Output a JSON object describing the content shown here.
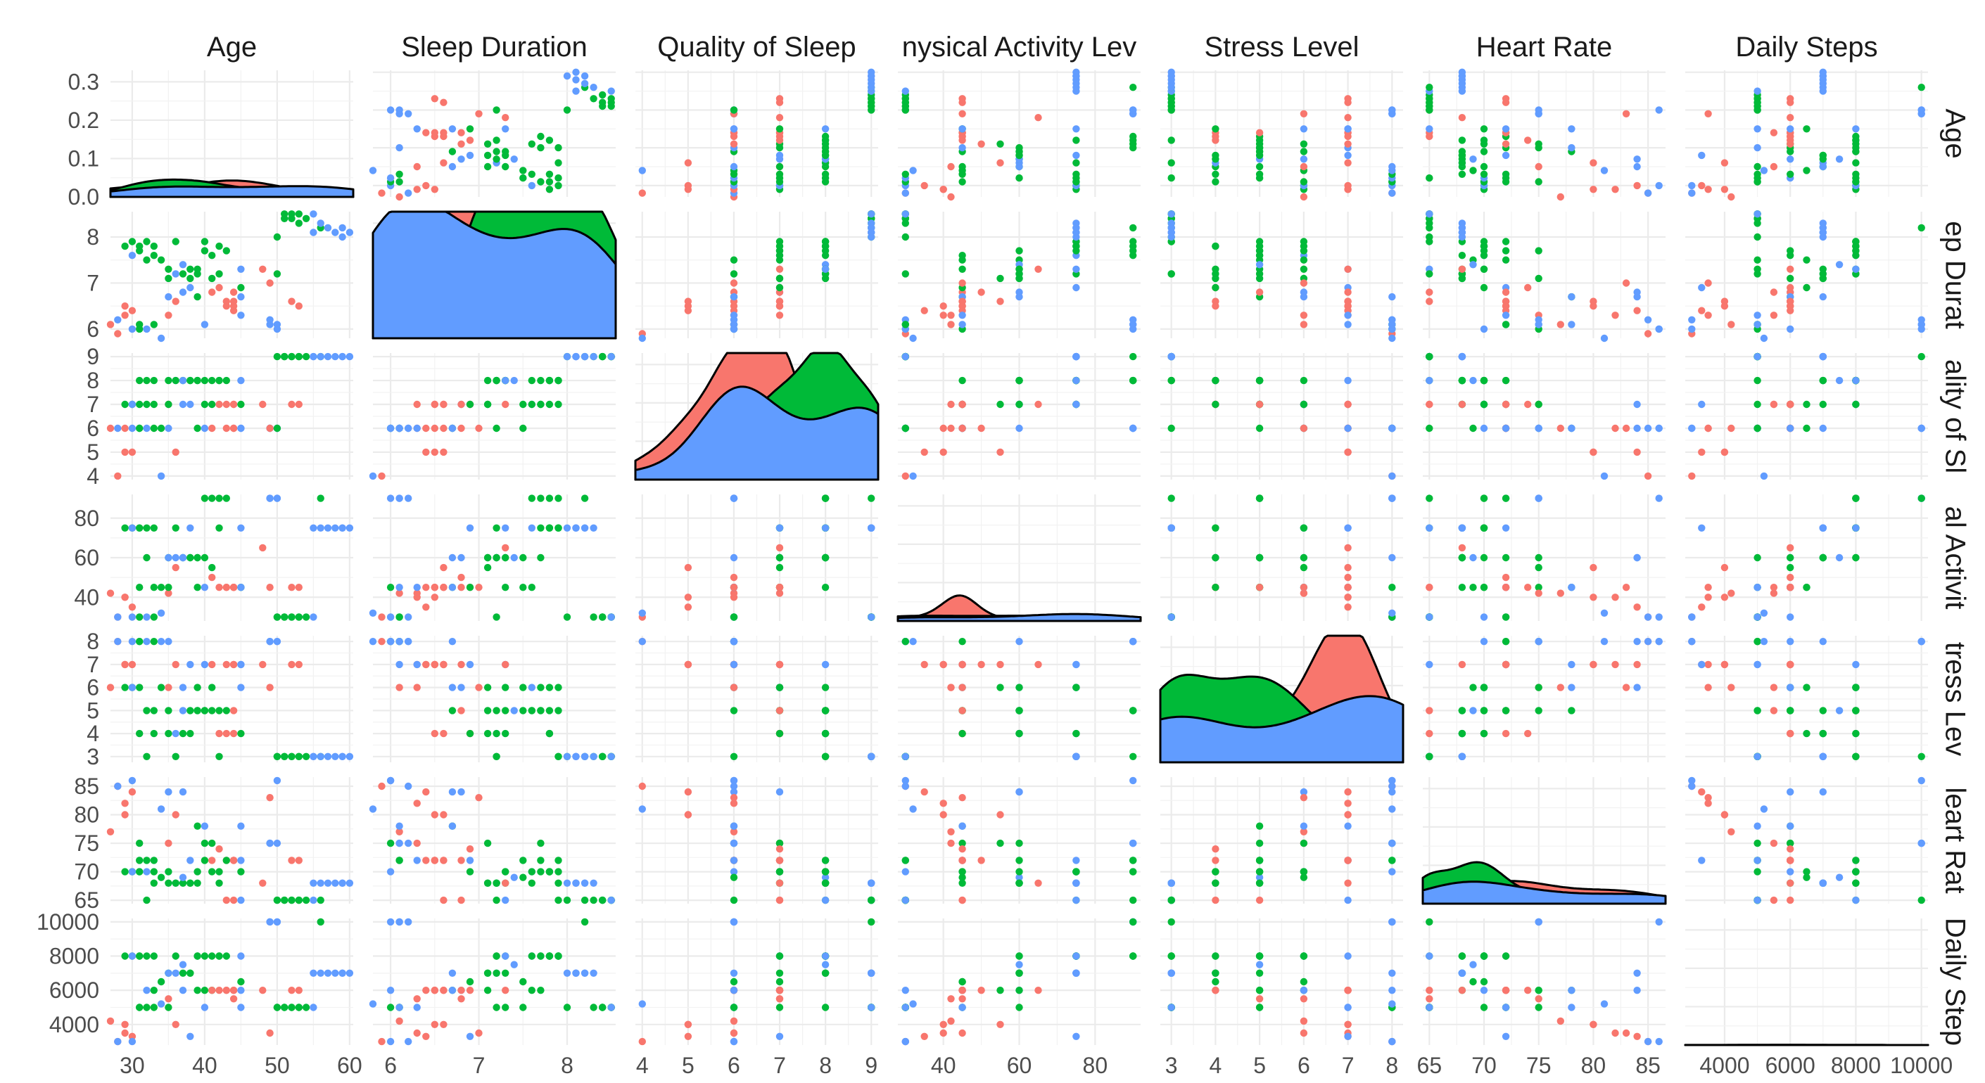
{
  "chart_data": {
    "type": "scatter",
    "variables": [
      "Age",
      "Sleep Duration",
      "Quality of Sleep",
      "Physical Activity Level",
      "Stress Level",
      "Heart Rate",
      "Daily Steps"
    ],
    "column_strips": [
      "Age",
      "Sleep Duration",
      "Quality of Sleep",
      "nysical Activity Lev",
      "Stress Level",
      "Heart Rate",
      "Daily Steps"
    ],
    "row_strips": [
      "Age",
      "ep Durat",
      "ality of Sl",
      "al Activit",
      "tress Lev",
      "leart Rat",
      "Daily Step"
    ],
    "colors": [
      "#F8766D",
      "#00BA38",
      "#619CFF"
    ],
    "axes": [
      {
        "range": [
          27,
          60.5
        ],
        "ticks": [
          30,
          40,
          50,
          60
        ]
      },
      {
        "range": [
          5.8,
          8.55
        ],
        "ticks": [
          6,
          7,
          8
        ]
      },
      {
        "range": [
          3.85,
          9.15
        ],
        "ticks": [
          4,
          5,
          6,
          7,
          8,
          9
        ]
      },
      {
        "range": [
          28,
          92
        ],
        "ticks": [
          40,
          60,
          80
        ]
      },
      {
        "range": [
          2.75,
          8.25
        ],
        "ticks": [
          3,
          4,
          5,
          6,
          7,
          8
        ]
      },
      {
        "range": [
          64.4,
          86.6
        ],
        "ticks": [
          65,
          70,
          75,
          80,
          85
        ]
      },
      {
        "range": [
          2800,
          10200
        ],
        "ticks": [
          4000,
          6000,
          8000,
          10000
        ]
      }
    ],
    "density_ymax": 0.33,
    "density_ticks": [
      0.0,
      0.1,
      0.2,
      0.3
    ],
    "density_tick_labels": [
      "0.0",
      "0.1",
      "0.2",
      "0.3"
    ],
    "points": [
      [
        27,
        6.1,
        6,
        42,
        6,
        77,
        4200,
        0
      ],
      [
        28,
        5.9,
        4,
        30,
        8,
        85,
        3000,
        0
      ],
      [
        28,
        6.2,
        6,
        30,
        8,
        85,
        3000,
        2
      ],
      [
        29,
        6.3,
        6,
        40,
        7,
        82,
        3500,
        0
      ],
      [
        29,
        6.5,
        5,
        40,
        7,
        80,
        4000,
        0
      ],
      [
        29,
        7.8,
        7,
        75,
        6,
        70,
        8000,
        1
      ],
      [
        30,
        7.9,
        7,
        75,
        6,
        70,
        8000,
        1
      ],
      [
        30,
        6.4,
        5,
        35,
        7,
        84,
        3300,
        0
      ],
      [
        30,
        6.0,
        6,
        30,
        8,
        86,
        3000,
        2
      ],
      [
        30,
        7.6,
        7,
        75,
        6,
        70,
        8000,
        2
      ],
      [
        31,
        7.7,
        7,
        75,
        6,
        70,
        8000,
        1
      ],
      [
        31,
        6.1,
        6,
        30,
        8,
        72,
        5000,
        1
      ],
      [
        31,
        7.8,
        8,
        75,
        4,
        70,
        8000,
        1
      ],
      [
        31,
        6.0,
        6,
        45,
        8,
        75,
        5000,
        1
      ],
      [
        32,
        7.5,
        7,
        60,
        5,
        72,
        5000,
        1
      ],
      [
        32,
        7.9,
        8,
        75,
        3,
        65,
        8000,
        1
      ],
      [
        32,
        6.0,
        6,
        30,
        8,
        70,
        6000,
        2
      ],
      [
        33,
        7.6,
        7,
        45,
        5,
        68,
        6000,
        1
      ],
      [
        33,
        6.1,
        6,
        30,
        8,
        72,
        5000,
        1
      ],
      [
        33,
        7.8,
        8,
        75,
        4,
        70,
        8000,
        1
      ],
      [
        34,
        5.8,
        4,
        32,
        8,
        81,
        5200,
        2
      ],
      [
        34,
        7.5,
        6,
        45,
        6,
        69,
        6500,
        1
      ],
      [
        35,
        6.3,
        7,
        42,
        6,
        75,
        5500,
        0
      ],
      [
        35,
        7.3,
        8,
        45,
        5,
        70,
        5000,
        1
      ],
      [
        35,
        7.1,
        7,
        60,
        4,
        68,
        7000,
        1
      ],
      [
        35,
        6.7,
        6,
        60,
        8,
        84,
        7000,
        2
      ],
      [
        36,
        7.2,
        8,
        60,
        4,
        68,
        7000,
        2
      ],
      [
        36,
        7.9,
        8,
        75,
        3,
        68,
        8000,
        1
      ],
      [
        36,
        6.6,
        5,
        55,
        7,
        80,
        4000,
        0
      ],
      [
        37,
        7.2,
        8,
        60,
        4,
        68,
        7000,
        1
      ],
      [
        37,
        7.4,
        8,
        60,
        5,
        69,
        7500,
        2
      ],
      [
        37,
        6.8,
        7,
        60,
        6,
        84,
        6000,
        2
      ],
      [
        38,
        7.1,
        8,
        60,
        5,
        68,
        7000,
        1
      ],
      [
        38,
        7.3,
        8,
        60,
        4,
        68,
        7000,
        1
      ],
      [
        38,
        6.9,
        7,
        75,
        7,
        72,
        3300,
        2
      ],
      [
        39,
        7.2,
        8,
        60,
        5,
        68,
        8000,
        1
      ],
      [
        39,
        7.3,
        8,
        60,
        6,
        70,
        8000,
        1
      ],
      [
        39,
        6.7,
        6,
        45,
        5,
        78,
        6000,
        1
      ],
      [
        40,
        7.9,
        8,
        90,
        5,
        72,
        8000,
        1
      ],
      [
        40,
        7.7,
        7,
        60,
        5,
        75,
        6000,
        1
      ],
      [
        40,
        6.1,
        6,
        45,
        7,
        78,
        5000,
        2
      ],
      [
        41,
        7.6,
        8,
        90,
        5,
        70,
        8000,
        1
      ],
      [
        41,
        7.1,
        7,
        55,
        6,
        75,
        6000,
        1
      ],
      [
        41,
        6.8,
        6,
        50,
        7,
        72,
        6000,
        0
      ],
      [
        42,
        7.8,
        8,
        90,
        5,
        70,
        8000,
        1
      ],
      [
        42,
        6.9,
        7,
        45,
        4,
        74,
        6000,
        0
      ],
      [
        42,
        7.2,
        8,
        75,
        3,
        68,
        8000,
        1
      ],
      [
        43,
        6.5,
        6,
        45,
        7,
        72,
        6000,
        0
      ],
      [
        43,
        6.6,
        7,
        45,
        4,
        65,
        6000,
        0
      ],
      [
        43,
        7.7,
        8,
        90,
        5,
        72,
        8000,
        1
      ],
      [
        44,
        6.6,
        6,
        45,
        7,
        72,
        6000,
        0
      ],
      [
        44,
        6.4,
        6,
        45,
        7,
        72,
        6000,
        0
      ],
      [
        44,
        6.8,
        7,
        45,
        5,
        65,
        5500,
        0
      ],
      [
        44,
        6.5,
        7,
        45,
        4,
        72,
        6000,
        0
      ],
      [
        45,
        6.7,
        6,
        45,
        6,
        78,
        6000,
        2
      ],
      [
        45,
        6.9,
        7,
        45,
        4,
        70,
        6500,
        1
      ],
      [
        45,
        7.3,
        8,
        75,
        7,
        65,
        8000,
        2
      ],
      [
        45,
        6.3,
        6,
        45,
        7,
        72,
        5000,
        2
      ],
      [
        48,
        7.3,
        7,
        65,
        7,
        68,
        6000,
        0
      ],
      [
        49,
        6.1,
        6,
        90,
        8,
        75,
        10000,
        2
      ],
      [
        49,
        6.2,
        6,
        90,
        8,
        75,
        10000,
        2
      ],
      [
        49,
        7.0,
        6,
        45,
        6,
        83,
        3500,
        0
      ],
      [
        50,
        6.1,
        6,
        90,
        8,
        75,
        10000,
        2
      ],
      [
        50,
        6.0,
        6,
        90,
        8,
        86,
        10000,
        2
      ],
      [
        50,
        8.0,
        9,
        30,
        3,
        65,
        5000,
        1
      ],
      [
        50,
        7.2,
        6,
        30,
        3,
        65,
        5000,
        1
      ],
      [
        51,
        8.5,
        9,
        30,
        3,
        65,
        5000,
        1
      ],
      [
        51,
        8.4,
        9,
        30,
        3,
        65,
        5000,
        1
      ],
      [
        52,
        8.5,
        9,
        30,
        3,
        65,
        5000,
        1
      ],
      [
        52,
        6.6,
        7,
        45,
        7,
        72,
        6000,
        0
      ],
      [
        52,
        8.4,
        9,
        30,
        3,
        65,
        5000,
        1
      ],
      [
        53,
        6.5,
        7,
        45,
        7,
        72,
        6000,
        0
      ],
      [
        53,
        8.3,
        9,
        30,
        3,
        65,
        5000,
        1
      ],
      [
        53,
        8.5,
        9,
        30,
        3,
        65,
        5000,
        1
      ],
      [
        54,
        8.4,
        9,
        30,
        3,
        65,
        5000,
        1
      ],
      [
        55,
        8.1,
        9,
        75,
        3,
        68,
        7000,
        2
      ],
      [
        55,
        8.5,
        9,
        30,
        3,
        65,
        5000,
        2
      ],
      [
        56,
        8.2,
        9,
        90,
        3,
        65,
        10000,
        1
      ],
      [
        56,
        8.3,
        9,
        75,
        3,
        68,
        7000,
        2
      ],
      [
        57,
        8.2,
        9,
        75,
        3,
        68,
        7000,
        2
      ],
      [
        58,
        8.1,
        9,
        75,
        3,
        68,
        7000,
        2
      ],
      [
        59,
        8.2,
        9,
        75,
        3,
        68,
        7000,
        2
      ],
      [
        59,
        8.0,
        9,
        75,
        3,
        68,
        7000,
        2
      ],
      [
        60,
        8.1,
        9,
        75,
        3,
        68,
        7000,
        2
      ]
    ]
  }
}
